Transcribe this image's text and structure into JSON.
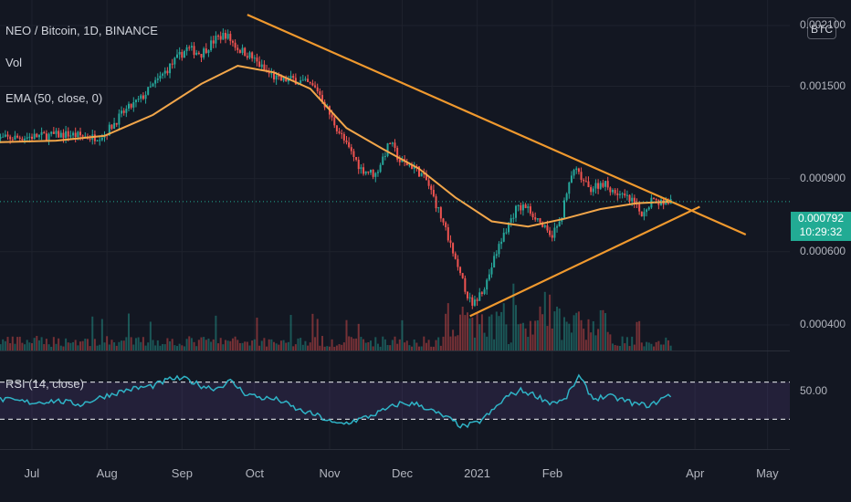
{
  "legend": {
    "symbol": "NEO / Bitcoin, 1D, BINANCE",
    "vol": "Vol",
    "ema": "EMA (50, close, 0)",
    "rsi": "RSI (14, close)"
  },
  "currency_badge": "BTC",
  "price_axis": {
    "ticks": [
      {
        "label": "0.002100",
        "value": 0.0021
      },
      {
        "label": "0.001500",
        "value": 0.0015
      },
      {
        "label": "0.000900",
        "value": 0.0009
      },
      {
        "label": "0.000600",
        "value": 0.0006
      },
      {
        "label": "0.000400",
        "value": 0.0004
      }
    ],
    "current_price": "0.000792",
    "countdown": "10:29:32"
  },
  "rsi_axis": {
    "label": "50.00",
    "value": 50,
    "upper_band": 70,
    "lower_band": 30
  },
  "time_axis": {
    "labels": [
      {
        "label": "Jul",
        "day": 0
      },
      {
        "label": "Aug",
        "day": 31
      },
      {
        "label": "Sep",
        "day": 62
      },
      {
        "label": "Oct",
        "day": 92
      },
      {
        "label": "Nov",
        "day": 123
      },
      {
        "label": "Dec",
        "day": 153
      },
      {
        "label": "2021",
        "day": 184
      },
      {
        "label": "Feb",
        "day": 215
      },
      {
        "label": "Apr",
        "day": 274
      },
      {
        "label": "May",
        "day": 304
      }
    ]
  },
  "chart_data": {
    "type": "candlestick",
    "symbol": "NEO/BTC",
    "interval": "1D",
    "exchange": "BINANCE",
    "y_scale": "log",
    "close_series": [
      [
        -15,
        0.00112
      ],
      [
        -5,
        0.00113
      ],
      [
        5,
        0.00114
      ],
      [
        15,
        0.00115
      ],
      [
        25,
        0.00113
      ],
      [
        30,
        0.00115
      ],
      [
        38,
        0.0013
      ],
      [
        45,
        0.0014
      ],
      [
        52,
        0.00155
      ],
      [
        58,
        0.0017
      ],
      [
        64,
        0.00185
      ],
      [
        70,
        0.0018
      ],
      [
        76,
        0.00195
      ],
      [
        80,
        0.002
      ],
      [
        85,
        0.00185
      ],
      [
        90,
        0.00178
      ],
      [
        96,
        0.00164
      ],
      [
        102,
        0.00155
      ],
      [
        108,
        0.00156
      ],
      [
        114,
        0.00152
      ],
      [
        118,
        0.00147
      ],
      [
        124,
        0.00125
      ],
      [
        130,
        0.00108
      ],
      [
        136,
        0.00095
      ],
      [
        142,
        0.00092
      ],
      [
        148,
        0.0011
      ],
      [
        152,
        0.00099
      ],
      [
        158,
        0.00096
      ],
      [
        163,
        0.00089
      ],
      [
        170,
        0.0007
      ],
      [
        176,
        0.00054
      ],
      [
        182,
        0.00044
      ],
      [
        188,
        0.00051
      ],
      [
        194,
        0.00064
      ],
      [
        200,
        0.00076
      ],
      [
        204,
        0.00077
      ],
      [
        209,
        0.00072
      ],
      [
        214,
        0.00065
      ],
      [
        218,
        0.0007
      ],
      [
        224,
        0.00095
      ],
      [
        230,
        0.00085
      ],
      [
        236,
        0.00088
      ],
      [
        242,
        0.00083
      ],
      [
        248,
        0.00079
      ],
      [
        252,
        0.00074
      ],
      [
        256,
        0.0008
      ],
      [
        260,
        0.00079
      ],
      [
        264,
        0.000792
      ]
    ],
    "ema_series": [
      [
        -15,
        0.0011
      ],
      [
        10,
        0.00111
      ],
      [
        30,
        0.00114
      ],
      [
        50,
        0.00128
      ],
      [
        70,
        0.00152
      ],
      [
        85,
        0.00168
      ],
      [
        100,
        0.00162
      ],
      [
        115,
        0.00148
      ],
      [
        130,
        0.00119
      ],
      [
        145,
        0.00106
      ],
      [
        160,
        0.00095
      ],
      [
        175,
        0.00081
      ],
      [
        190,
        0.00071
      ],
      [
        205,
        0.00069
      ],
      [
        220,
        0.00072
      ],
      [
        235,
        0.00076
      ],
      [
        250,
        0.000785
      ],
      [
        264,
        0.000792
      ]
    ],
    "trendlines": [
      {
        "points": [
          [
            89,
            0.00223
          ],
          [
            295,
            0.00066
          ]
        ]
      },
      {
        "points": [
          [
            181,
            0.00042
          ],
          [
            276,
            0.00077
          ]
        ]
      }
    ],
    "rsi_series": [
      [
        -15,
        52
      ],
      [
        0,
        48
      ],
      [
        10,
        50
      ],
      [
        20,
        46
      ],
      [
        30,
        55
      ],
      [
        40,
        62
      ],
      [
        50,
        66
      ],
      [
        58,
        74
      ],
      [
        64,
        73
      ],
      [
        70,
        66
      ],
      [
        76,
        63
      ],
      [
        82,
        71
      ],
      [
        88,
        58
      ],
      [
        95,
        53
      ],
      [
        102,
        51
      ],
      [
        110,
        40
      ],
      [
        118,
        34
      ],
      [
        125,
        25
      ],
      [
        130,
        26
      ],
      [
        138,
        32
      ],
      [
        145,
        39
      ],
      [
        152,
        47
      ],
      [
        160,
        46
      ],
      [
        166,
        38
      ],
      [
        172,
        31
      ],
      [
        178,
        22
      ],
      [
        184,
        26
      ],
      [
        190,
        38
      ],
      [
        196,
        54
      ],
      [
        202,
        61
      ],
      [
        208,
        56
      ],
      [
        214,
        48
      ],
      [
        220,
        50
      ],
      [
        226,
        76
      ],
      [
        232,
        52
      ],
      [
        238,
        55
      ],
      [
        244,
        51
      ],
      [
        250,
        46
      ],
      [
        256,
        45
      ],
      [
        260,
        52
      ],
      [
        264,
        56
      ]
    ],
    "rsi_ylim": [
      0,
      100
    ]
  }
}
